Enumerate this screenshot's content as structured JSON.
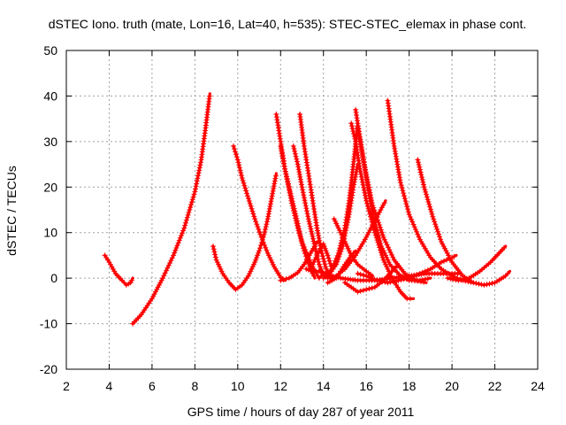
{
  "chart_data": {
    "type": "line",
    "title": "dSTEC Iono. truth (mate, Lon=16, Lat=40, h=535): STEC-STEC_elemax in phase cont.",
    "xlabel": "GPS time / hours of day 287 of year 2011",
    "ylabel": "dSTEC  / TECUs",
    "xlim": [
      2,
      24
    ],
    "ylim": [
      -20,
      50
    ],
    "xticks": [
      2,
      4,
      6,
      8,
      10,
      12,
      14,
      16,
      18,
      20,
      22,
      24
    ],
    "yticks": [
      -20,
      -10,
      0,
      10,
      20,
      30,
      40,
      50
    ],
    "grid": true,
    "marker": "+",
    "color": "#ff0000",
    "series": [
      {
        "x": [
          3.8,
          4.0,
          4.3,
          4.6,
          4.8,
          5.0,
          5.1
        ],
        "y": [
          5,
          3.5,
          1.0,
          -0.5,
          -1.5,
          -1.0,
          0.0
        ]
      },
      {
        "x": [
          5.1,
          5.5,
          6.0,
          6.5,
          7.0,
          7.5,
          8.0,
          8.3,
          8.5,
          8.7
        ],
        "y": [
          -10,
          -8,
          -4.5,
          0,
          5,
          11,
          19,
          26,
          33,
          40.5
        ]
      },
      {
        "x": [
          8.85,
          9.0,
          9.3,
          9.6,
          9.9,
          10.2,
          10.5,
          10.8,
          11.0,
          11.2,
          11.4,
          11.6,
          11.8
        ],
        "y": [
          7,
          4,
          1,
          -1,
          -2.5,
          -1.5,
          0.5,
          3.5,
          6,
          9,
          13,
          18,
          23
        ]
      },
      {
        "x": [
          9.8,
          10.0,
          10.2,
          10.5,
          10.8,
          11.1,
          11.4,
          11.7,
          12.0,
          12.2
        ],
        "y": [
          29,
          26,
          22,
          17.5,
          13,
          9,
          5.5,
          2.5,
          0.2,
          -0.5
        ]
      },
      {
        "x": [
          11.8,
          12.0,
          12.2,
          12.5,
          12.8,
          13.1,
          13.4,
          13.6
        ],
        "y": [
          36,
          30,
          24,
          17,
          11,
          6,
          2,
          0
        ]
      },
      {
        "x": [
          12.0,
          12.2,
          12.5,
          12.8,
          13.0,
          13.3,
          13.6,
          13.8,
          14.0
        ],
        "y": [
          29,
          24,
          18,
          12,
          8,
          4.5,
          1.5,
          0,
          1
        ]
      },
      {
        "x": [
          12.0,
          12.4,
          12.8,
          13.1,
          13.4,
          13.7
        ],
        "y": [
          -0.5,
          0,
          1.2,
          3,
          5.5,
          8
        ]
      },
      {
        "x": [
          12.6,
          12.8,
          13.0,
          13.3,
          13.6,
          13.8,
          14.0,
          14.2
        ],
        "y": [
          29,
          25,
          20,
          13,
          7,
          3,
          0.5,
          0
        ]
      },
      {
        "x": [
          12.9,
          13.1,
          13.3,
          13.5,
          13.7,
          13.9,
          14.1,
          14.3
        ],
        "y": [
          36,
          29,
          23,
          17,
          11,
          6,
          2.5,
          0
        ]
      },
      {
        "x": [
          13.4,
          13.6,
          13.8,
          14.0,
          14.2,
          14.4
        ],
        "y": [
          2,
          4,
          6,
          7.5,
          5,
          2
        ]
      },
      {
        "x": [
          13.2,
          13.5,
          13.8,
          14.1,
          14.4
        ],
        "y": [
          2,
          1.5,
          1.5,
          1.0,
          0.0
        ]
      },
      {
        "x": [
          14.2,
          14.6,
          15.0,
          15.3,
          15.5
        ],
        "y": [
          -1,
          0,
          3,
          5,
          6
        ]
      },
      {
        "x": [
          14.5,
          14.7,
          15.0,
          15.3,
          15.6,
          16.0,
          16.3
        ],
        "y": [
          13,
          11,
          8,
          5,
          3,
          1.5,
          0.5
        ]
      },
      {
        "x": [
          14.0,
          14.3,
          14.6,
          14.9,
          15.2,
          15.4,
          15.6
        ],
        "y": [
          0,
          1.0,
          3.0,
          7,
          14,
          20,
          25
        ]
      },
      {
        "x": [
          14.1,
          14.4,
          14.7,
          15.0,
          15.2,
          15.4,
          15.6
        ],
        "y": [
          0.5,
          2.0,
          5.5,
          11,
          17,
          25,
          34
        ]
      },
      {
        "x": [
          15.3,
          15.5,
          15.7,
          16.0,
          16.4,
          16.8,
          17.2,
          17.6,
          17.9,
          18.2
        ],
        "y": [
          34,
          30,
          24,
          17,
          10,
          4,
          0,
          -3,
          -4.5,
          -4.5
        ]
      },
      {
        "x": [
          15.5,
          15.7,
          16.0,
          16.3,
          16.7,
          17.1,
          17.6,
          18.0,
          18.5,
          19.0
        ],
        "y": [
          37,
          31,
          22,
          14,
          7,
          3,
          0.5,
          -0.5,
          -0.5,
          0
        ]
      },
      {
        "x": [
          15.6,
          15.9,
          16.3,
          16.8,
          17.3,
          17.8,
          18.3,
          18.8
        ],
        "y": [
          33,
          25,
          16,
          9,
          4,
          1,
          -0.5,
          -1
        ]
      },
      {
        "x": [
          15.0,
          15.3,
          15.6,
          16.0,
          16.4,
          16.8,
          17.2,
          17.5
        ],
        "y": [
          -1,
          -2,
          -3,
          -2.5,
          -2,
          -0.5,
          1.5,
          3
        ]
      },
      {
        "x": [
          14.2,
          14.6,
          15.0,
          15.5,
          16.0,
          16.5,
          16.9
        ],
        "y": [
          0,
          0.5,
          2,
          5,
          9,
          13.5,
          17
        ]
      },
      {
        "x": [
          14.0,
          14.8,
          15.6,
          16.4,
          17.2,
          18.0,
          18.8,
          19.6,
          20.4
        ],
        "y": [
          1,
          0,
          -0.5,
          -0.5,
          0,
          0.5,
          1,
          1,
          1
        ]
      },
      {
        "x": [
          15.6,
          16.0,
          16.5,
          17.0,
          17.5,
          18.0,
          18.5,
          19.0,
          19.5,
          20.0,
          20.2
        ],
        "y": [
          1,
          0.5,
          -0.5,
          -1,
          -0.5,
          0,
          1,
          2,
          3.5,
          4.5,
          5
        ]
      },
      {
        "x": [
          17.0,
          17.3,
          17.6,
          18.0,
          18.5,
          19.0,
          19.5,
          20.0,
          20.5,
          21.0
        ],
        "y": [
          39,
          29,
          21,
          14,
          8.5,
          4.5,
          2,
          0.5,
          -0.5,
          -1
        ]
      },
      {
        "x": [
          18.4,
          18.7,
          19.1,
          19.5,
          20.0,
          20.5,
          21.0,
          21.5,
          22.0,
          22.5,
          22.7
        ],
        "y": [
          26,
          20,
          13.5,
          8,
          3.5,
          0.5,
          -1,
          -1.5,
          -1,
          0.5,
          1.5
        ]
      },
      {
        "x": [
          19.8,
          20.3,
          20.8,
          21.3,
          21.8,
          22.2,
          22.5
        ],
        "y": [
          0,
          -0.5,
          0,
          1.5,
          3.5,
          5.5,
          7
        ]
      }
    ]
  }
}
